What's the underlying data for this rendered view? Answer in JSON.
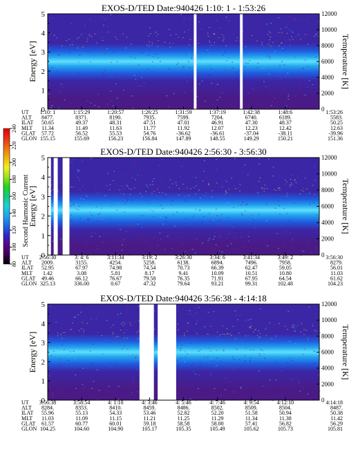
{
  "chart_data": [
    {
      "type": "heatmap",
      "title": "EXOS-D/TED   Date:940426  1:10: 1 - 1:53:26",
      "ylabel": "Energy [eV]",
      "ylabel_right": "Temperature [K]",
      "ylim": [
        0,
        5
      ],
      "yticks": [
        "0",
        "1",
        "2",
        "3",
        "4",
        "5"
      ],
      "ylim_right": [
        0,
        12000
      ],
      "yticks_right": [
        "0",
        "2000",
        "4000",
        "6000",
        "8000",
        "10000",
        "12000"
      ],
      "band_center_ev": 2.5,
      "data_gaps_x_fraction": [
        [
          0.538,
          0.548
        ],
        [
          0.708,
          0.718
        ]
      ],
      "orbit_row_labels": [
        "UT",
        "ALT",
        "ILAT",
        "MLT",
        "GLAT",
        "GLON"
      ],
      "orbit_columns": [
        [
          "1:10: 1",
          "8477.",
          "50.65",
          "11.34",
          "57.72",
          "155.15"
        ],
        [
          "1:15:29",
          "8371.",
          "49.37",
          "11.49",
          "56.52",
          "155.69"
        ],
        [
          "1:20:57",
          "8190.",
          "48.31",
          "11.63",
          "55.53",
          "156.23"
        ],
        [
          "1:26:25",
          "7935.",
          "47.51",
          "11.77",
          "54.76",
          "156.84"
        ],
        [
          "1:31:59",
          "7599.",
          "47.01",
          "11.92",
          "-36.62",
          "147.89"
        ],
        [
          "1:37:19",
          "7204.",
          "46.91",
          "12.07",
          "-36.61",
          "148.55"
        ],
        [
          "1:42:38",
          "6740.",
          "47.30",
          "12.23",
          "-37.04",
          "149.29"
        ],
        [
          "1:48:6",
          "6189.",
          "48.37",
          "12.42",
          "-38.11",
          "150.21"
        ],
        [
          "1:53:26",
          "5583.",
          "50.25",
          "12.63",
          "-39.96",
          "151.36"
        ]
      ]
    },
    {
      "type": "heatmap",
      "title": "EXOS-D/TED   Date:940426  2:56:30 - 3:56:30",
      "ylabel": "Energy [eV]",
      "ylabel_right": "Temperature [K]",
      "ylim": [
        0,
        5
      ],
      "yticks": [
        "0",
        "1",
        "2",
        "3",
        "4",
        "5"
      ],
      "ylim_right": [
        0,
        12000
      ],
      "yticks_right": [
        "0",
        "2000",
        "4000",
        "6000",
        "8000",
        "10000",
        "12000"
      ],
      "band_center_ev": 2.3,
      "data_gaps_x_fraction": [
        [
          0.0,
          0.012
        ],
        [
          0.022,
          0.037
        ],
        [
          0.055,
          0.08
        ]
      ],
      "orbit_row_labels": [
        "UT",
        "ALT",
        "ILAT",
        "MLT",
        "GLAT",
        "GLON"
      ],
      "orbit_columns": [
        [
          "2:56:30",
          "2009.",
          "52.95",
          "1.42",
          "49.46",
          "325.13"
        ],
        [
          "3: 4: 6",
          "3155.",
          "67.97",
          "3.08",
          "66.12",
          "336.00"
        ],
        [
          "3:11:34",
          "4254.",
          "74.98",
          "5.81",
          "76.67",
          "0.67"
        ],
        [
          "3:19: 2",
          "5258.",
          "74.54",
          "8.17",
          "79.58",
          "47.32"
        ],
        [
          "3:26:30",
          "6138.",
          "70.73",
          "9.41",
          "76.35",
          "79.64"
        ],
        [
          "3:34: 6",
          "6894.",
          "66.39",
          "10.09",
          "71.91",
          "93.21"
        ],
        [
          "3:41:34",
          "7496.",
          "62.47",
          "10.51",
          "67.95",
          "99.31"
        ],
        [
          "3:49: 2",
          "7958.",
          "59.05",
          "10.80",
          "64.54",
          "102.48"
        ],
        [
          "3:56:30",
          "8279.",
          "56.01",
          "11.03",
          "61.62",
          "104.23"
        ]
      ]
    },
    {
      "type": "heatmap",
      "title": "EXOS-D/TED   Date:940426  3:56:38 - 4:14:18",
      "ylabel": "Energy [eV]",
      "ylabel_right": "Temperature [K]",
      "ylim": [
        0,
        5
      ],
      "yticks": [
        "0",
        "1",
        "2",
        "3",
        "4",
        "5"
      ],
      "ylim_right": [
        0,
        12000
      ],
      "yticks_right": [
        "0",
        "2000",
        "4000",
        "6000",
        "8000",
        "10000",
        "12000"
      ],
      "band_center_ev": 2.5,
      "data_gaps_x_fraction": [
        [
          0.338,
          0.391
        ],
        [
          0.405,
          0.473
        ]
      ],
      "orbit_row_labels": [
        "UT",
        "ALT",
        "ILAT",
        "MLT",
        "GLAT",
        "GLON"
      ],
      "orbit_columns": [
        [
          "3:56:38",
          "8284.",
          "55.96",
          "11.03",
          "61.57",
          "104.25"
        ],
        [
          "3:58:54",
          "8353.",
          "55.13",
          "11.09",
          "60.77",
          "104.60"
        ],
        [
          "4: 1:10",
          "8410.",
          "54.33",
          "11.15",
          "60.01",
          "104.90"
        ],
        [
          "4: 3:46",
          "8459.",
          "53.46",
          "11.21",
          "59.18",
          "105.17"
        ],
        [
          "4: 5:46",
          "8486.",
          "52.82",
          "11.25",
          "58.58",
          "105.35"
        ],
        [
          "4: 7:46",
          "8502.",
          "52.20",
          "11.29",
          "58.00",
          "105.49"
        ],
        [
          "4: 9:54",
          "8509.",
          "51.58",
          "11.34",
          "57.41",
          "105.62"
        ],
        [
          "4:12:10",
          "8504.",
          "50.94",
          "11.38",
          "56.82",
          "105.73"
        ],
        [
          "4:14:18",
          "8487.",
          "50.38",
          "11.42",
          "56.29",
          "105.81"
        ]
      ]
    }
  ],
  "colorbar": {
    "label": "Second Harmonic Current",
    "ticks": [
      "80",
      "100",
      "120",
      "140",
      "160",
      "180",
      "200",
      "220",
      "240"
    ],
    "colors": [
      "#000000",
      "#3a0058",
      "#5a0090",
      "#2a2ac8",
      "#1f6ae8",
      "#1aa6f0",
      "#19d2d2",
      "#18c880",
      "#1cd81c",
      "#a0e020",
      "#f0f020",
      "#f0b010",
      "#f07010",
      "#e83018",
      "#e80000"
    ]
  },
  "colors": {
    "background": "#3b26a6",
    "band_mid": "#1f5ce0",
    "band_core": "#22a4ee",
    "band_hot": "#5fe0ff",
    "noise_low": "#4a1a86",
    "gap": "#ffffff"
  }
}
